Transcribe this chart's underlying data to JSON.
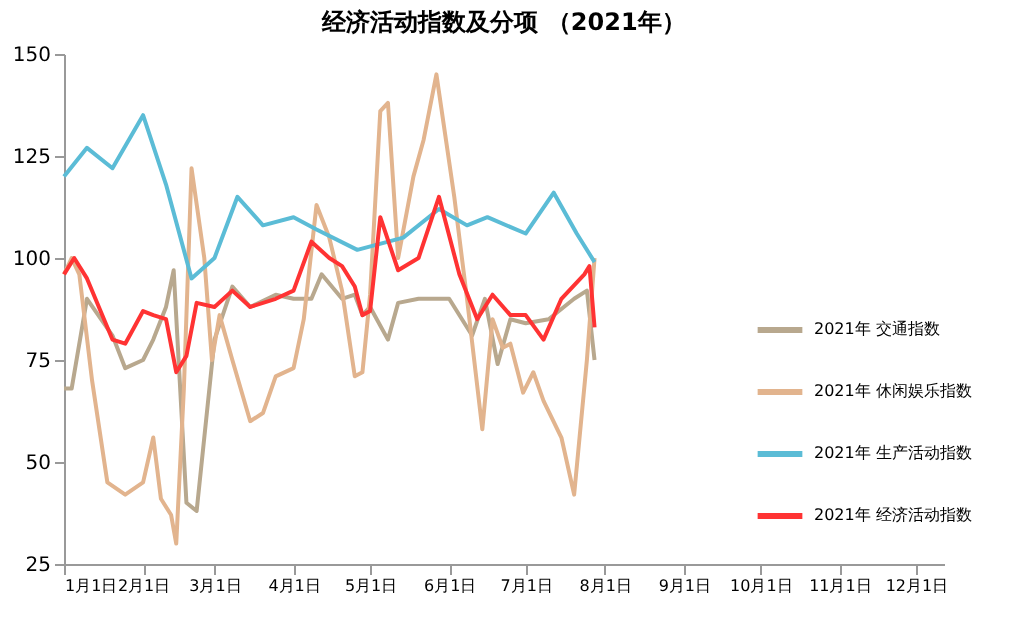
{
  "chart_data": {
    "type": "line",
    "title": "经济活动指数及分项 （2021年）",
    "xlim": [
      "2021-01-01",
      "2021-12-12"
    ],
    "xticks": [
      {
        "value": "2021-01-01",
        "label": "1月1日"
      },
      {
        "value": "2021-02-01",
        "label": "2月1日"
      },
      {
        "value": "2021-03-01",
        "label": "3月1日"
      },
      {
        "value": "2021-04-01",
        "label": "4月1日"
      },
      {
        "value": "2021-05-01",
        "label": "5月1日"
      },
      {
        "value": "2021-06-01",
        "label": "6月1日"
      },
      {
        "value": "2021-07-01",
        "label": "7月1日"
      },
      {
        "value": "2021-08-01",
        "label": "8月1日"
      },
      {
        "value": "2021-09-01",
        "label": "9月1日"
      },
      {
        "value": "2021-10-01",
        "label": "10月1日"
      },
      {
        "value": "2021-11-01",
        "label": "11月1日"
      },
      {
        "value": "2021-12-01",
        "label": "12月1日"
      }
    ],
    "ylim": [
      25,
      150
    ],
    "yticks": [
      25,
      50,
      75,
      100,
      125,
      150
    ],
    "grid": false,
    "legend": "right",
    "marker": "none",
    "line_style": "solid",
    "series": [
      {
        "name": "2021年 交通指数",
        "color": "#b8a88e",
        "x": [
          "2021-01-01",
          "2021-01-04",
          "2021-01-10",
          "2021-01-20",
          "2021-01-25",
          "2021-02-01",
          "2021-02-05",
          "2021-02-10",
          "2021-02-13",
          "2021-02-18",
          "2021-02-22",
          "2021-03-01",
          "2021-03-08",
          "2021-03-15",
          "2021-03-25",
          "2021-04-01",
          "2021-04-08",
          "2021-04-12",
          "2021-04-20",
          "2021-04-25",
          "2021-04-28",
          "2021-05-01",
          "2021-05-08",
          "2021-05-12",
          "2021-05-20",
          "2021-06-01",
          "2021-06-10",
          "2021-06-15",
          "2021-06-20",
          "2021-06-25",
          "2021-07-01",
          "2021-07-10",
          "2021-07-20",
          "2021-07-25",
          "2021-07-28"
        ],
        "values": [
          68,
          68,
          90,
          81,
          73,
          75,
          80,
          88,
          97,
          40,
          38,
          80,
          93,
          88,
          91,
          90,
          90,
          96,
          90,
          91,
          86,
          88,
          80,
          89,
          90,
          90,
          81,
          90,
          74,
          85,
          84,
          85,
          90,
          92,
          75
        ]
      },
      {
        "name": "2021年 休闲娱乐指数",
        "color": "#e2b48e",
        "x": [
          "2021-01-01",
          "2021-01-04",
          "2021-01-07",
          "2021-01-12",
          "2021-01-18",
          "2021-01-25",
          "2021-02-01",
          "2021-02-05",
          "2021-02-08",
          "2021-02-12",
          "2021-02-14",
          "2021-02-17",
          "2021-02-20",
          "2021-02-25",
          "2021-02-28",
          "2021-03-03",
          "2021-03-08",
          "2021-03-15",
          "2021-03-20",
          "2021-03-25",
          "2021-04-01",
          "2021-04-05",
          "2021-04-10",
          "2021-04-15",
          "2021-04-20",
          "2021-04-25",
          "2021-04-28",
          "2021-05-01",
          "2021-05-05",
          "2021-05-08",
          "2021-05-12",
          "2021-05-18",
          "2021-05-22",
          "2021-05-27",
          "2021-06-03",
          "2021-06-08",
          "2021-06-14",
          "2021-06-18",
          "2021-06-22",
          "2021-06-25",
          "2021-06-30",
          "2021-07-04",
          "2021-07-08",
          "2021-07-15",
          "2021-07-20",
          "2021-07-25",
          "2021-07-28"
        ],
        "values": [
          96,
          100,
          96,
          70,
          45,
          42,
          45,
          56,
          41,
          37,
          30,
          68,
          122,
          100,
          75,
          86,
          75,
          60,
          62,
          71,
          73,
          85,
          113,
          105,
          92,
          71,
          72,
          91,
          136,
          138,
          100,
          120,
          129,
          145,
          115,
          90,
          58,
          85,
          78,
          79,
          67,
          72,
          65,
          56,
          42,
          75,
          100
        ]
      },
      {
        "name": "2021年 生产活动指数",
        "color": "#5bbcd6",
        "x": [
          "2021-01-01",
          "2021-01-10",
          "2021-01-20",
          "2021-02-01",
          "2021-02-10",
          "2021-02-20",
          "2021-03-01",
          "2021-03-10",
          "2021-03-20",
          "2021-04-01",
          "2021-04-10",
          "2021-04-26",
          "2021-05-14",
          "2021-05-28",
          "2021-06-08",
          "2021-06-16",
          "2021-07-01",
          "2021-07-12",
          "2021-07-21",
          "2021-07-28"
        ],
        "values": [
          120,
          127,
          122,
          135,
          118,
          95,
          100,
          115,
          108,
          110,
          107,
          102,
          105,
          112,
          108,
          110,
          106,
          116,
          106,
          99
        ]
      },
      {
        "name": "2021年 经济活动指数",
        "color": "#ff3333",
        "x": [
          "2021-01-01",
          "2021-01-05",
          "2021-01-10",
          "2021-01-20",
          "2021-01-25",
          "2021-02-01",
          "2021-02-05",
          "2021-02-10",
          "2021-02-14",
          "2021-02-18",
          "2021-02-22",
          "2021-03-01",
          "2021-03-08",
          "2021-03-15",
          "2021-03-25",
          "2021-04-01",
          "2021-04-08",
          "2021-04-15",
          "2021-04-20",
          "2021-04-25",
          "2021-04-28",
          "2021-05-01",
          "2021-05-05",
          "2021-05-12",
          "2021-05-20",
          "2021-05-28",
          "2021-06-05",
          "2021-06-12",
          "2021-06-18",
          "2021-06-25",
          "2021-07-01",
          "2021-07-08",
          "2021-07-15",
          "2021-07-24",
          "2021-07-26",
          "2021-07-28"
        ],
        "values": [
          96,
          100,
          95,
          80,
          79,
          87,
          86,
          85,
          72,
          76,
          89,
          88,
          92,
          88,
          90,
          92,
          104,
          100,
          98,
          93,
          86,
          87,
          110,
          97,
          100,
          115,
          96,
          85,
          91,
          86,
          86,
          80,
          90,
          96,
          98,
          83
        ]
      }
    ]
  }
}
